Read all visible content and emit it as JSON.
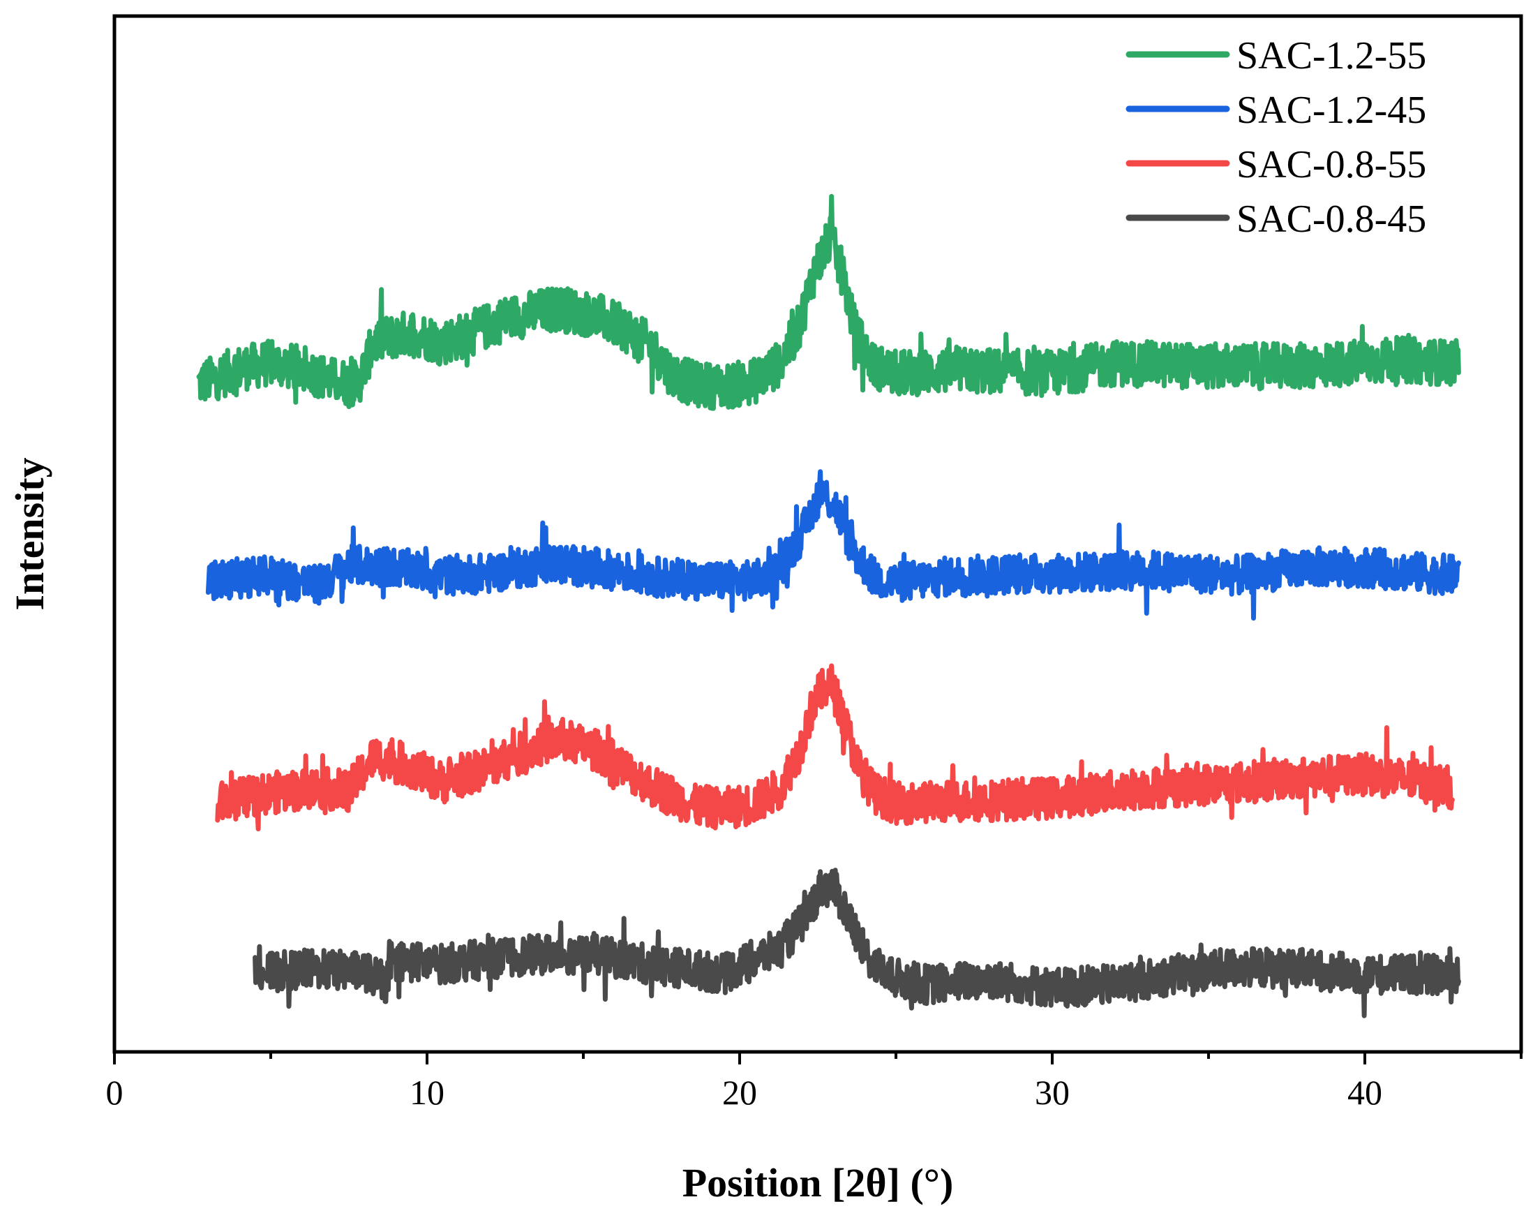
{
  "chart_data": {
    "type": "line",
    "title": "",
    "xlabel": "Position [2θ] (°)",
    "ylabel": "Intensity",
    "xlim": [
      0,
      45
    ],
    "ylim": [
      0,
      100
    ],
    "xticks": [
      0,
      10,
      20,
      30,
      40
    ],
    "xticks_minor": [
      5,
      15,
      25,
      35,
      45
    ],
    "y_ticks_shown": false,
    "grid": false,
    "legend_position": "top-right",
    "series": [
      {
        "name": "SAC-1.2-55",
        "color": "#2ea965",
        "x_start": 2.7,
        "x_end": 43.0,
        "baseline": 66,
        "noise": 2.2,
        "points": [
          [
            2.7,
            64.5
          ],
          [
            4,
            66
          ],
          [
            5,
            66.5
          ],
          [
            6,
            66
          ],
          [
            7,
            64.8
          ],
          [
            7.8,
            64.5
          ],
          [
            8.3,
            68.5
          ],
          [
            9.5,
            69.5
          ],
          [
            10.5,
            68.5
          ],
          [
            11.5,
            69.5
          ],
          [
            12.5,
            70.8
          ],
          [
            14.2,
            71.8
          ],
          [
            15.5,
            71
          ],
          [
            16.5,
            69.5
          ],
          [
            17.2,
            68
          ],
          [
            17.8,
            65.5
          ],
          [
            18.5,
            64.5
          ],
          [
            19.5,
            64.2
          ],
          [
            20.5,
            64.8
          ],
          [
            21.3,
            66.5
          ],
          [
            21.9,
            70
          ],
          [
            22.4,
            75.5
          ],
          [
            22.9,
            78.5
          ],
          [
            23.3,
            75
          ],
          [
            23.7,
            69.5
          ],
          [
            24.3,
            66.2
          ],
          [
            25,
            65.5
          ],
          [
            27,
            65.8
          ],
          [
            30,
            65.5
          ],
          [
            32,
            66.5
          ],
          [
            35,
            66.2
          ],
          [
            38,
            66.2
          ],
          [
            41,
            66.8
          ],
          [
            43,
            66.5
          ]
        ]
      },
      {
        "name": "SAC-1.2-45",
        "color": "#1964de",
        "x_start": 3.0,
        "x_end": 43.0,
        "baseline": 46,
        "noise": 1.9,
        "points": [
          [
            3,
            45.5
          ],
          [
            5,
            46
          ],
          [
            6.5,
            45
          ],
          [
            7.5,
            47
          ],
          [
            9,
            46.8
          ],
          [
            10.5,
            46
          ],
          [
            12,
            46.2
          ],
          [
            14,
            47.2
          ],
          [
            16,
            46.5
          ],
          [
            17.5,
            45.8
          ],
          [
            19,
            45.5
          ],
          [
            20.5,
            45.5
          ],
          [
            21.3,
            46.8
          ],
          [
            22,
            50
          ],
          [
            22.6,
            54.2
          ],
          [
            23.1,
            52.5
          ],
          [
            23.6,
            48.5
          ],
          [
            24.3,
            45.8
          ],
          [
            25,
            45.3
          ],
          [
            27,
            46
          ],
          [
            30,
            46.2
          ],
          [
            33,
            46.5
          ],
          [
            36,
            46
          ],
          [
            38,
            46.8
          ],
          [
            40,
            46.8
          ],
          [
            42,
            46.2
          ],
          [
            43,
            46
          ]
        ]
      },
      {
        "name": "SAC-0.8-55",
        "color": "#f44848",
        "x_start": 3.3,
        "x_end": 42.8,
        "baseline": 25,
        "noise": 2.0,
        "points": [
          [
            3.3,
            24
          ],
          [
            5,
            25
          ],
          [
            6.5,
            25.5
          ],
          [
            7.5,
            25.2
          ],
          [
            8.3,
            28.5
          ],
          [
            9.5,
            27.5
          ],
          [
            10.5,
            26
          ],
          [
            12,
            27.5
          ],
          [
            13.5,
            29.5
          ],
          [
            14.3,
            30.2
          ],
          [
            15.5,
            29
          ],
          [
            16.5,
            27
          ],
          [
            17.3,
            25.5
          ],
          [
            18.5,
            23.8
          ],
          [
            19.5,
            23.5
          ],
          [
            20.5,
            24
          ],
          [
            21.3,
            25.5
          ],
          [
            21.9,
            29
          ],
          [
            22.4,
            34
          ],
          [
            22.9,
            35.8
          ],
          [
            23.3,
            32.5
          ],
          [
            23.8,
            27.5
          ],
          [
            24.3,
            25
          ],
          [
            25,
            24
          ],
          [
            27,
            24.2
          ],
          [
            30,
            24.5
          ],
          [
            33,
            25.5
          ],
          [
            36,
            26
          ],
          [
            38,
            26.5
          ],
          [
            40,
            26.8
          ],
          [
            42,
            26
          ],
          [
            42.8,
            25.5
          ]
        ]
      },
      {
        "name": "SAC-0.8-45",
        "color": "#4a4a4a",
        "x_start": 4.5,
        "x_end": 43.0,
        "baseline": 7,
        "noise": 1.9,
        "points": [
          [
            4.5,
            7.5
          ],
          [
            6,
            8
          ],
          [
            8,
            7.8
          ],
          [
            8.7,
            6.6
          ],
          [
            9,
            8.8
          ],
          [
            10.5,
            8.5
          ],
          [
            12,
            9
          ],
          [
            14,
            9.5
          ],
          [
            15.5,
            9.3
          ],
          [
            17,
            8.5
          ],
          [
            18.5,
            8
          ],
          [
            19.5,
            7.5
          ],
          [
            20.5,
            9
          ],
          [
            21.3,
            10
          ],
          [
            22,
            12.5
          ],
          [
            22.6,
            15.8
          ],
          [
            23,
            16
          ],
          [
            23.5,
            13
          ],
          [
            24,
            9.5
          ],
          [
            24.8,
            7.2
          ],
          [
            26,
            6.5
          ],
          [
            28,
            7
          ],
          [
            30,
            6.2
          ],
          [
            32,
            6.5
          ],
          [
            34,
            7.5
          ],
          [
            36,
            8.2
          ],
          [
            38,
            8
          ],
          [
            40,
            7.5
          ],
          [
            42,
            7.5
          ],
          [
            43,
            7.2
          ]
        ]
      }
    ]
  }
}
